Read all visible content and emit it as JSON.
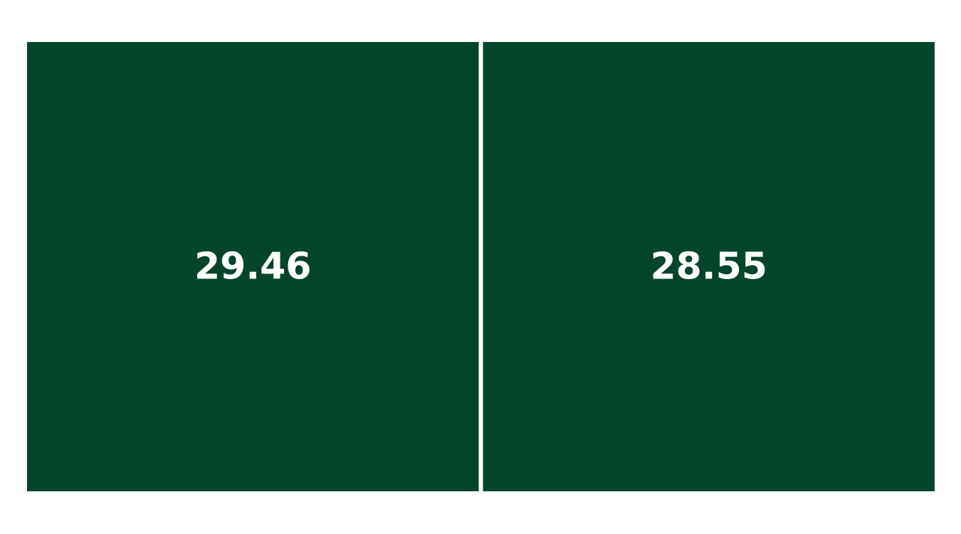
{
  "chart_data": {
    "type": "heatmap",
    "title": "",
    "xlabel": "",
    "ylabel": "",
    "rows": 1,
    "columns": 2,
    "values": [
      29.46,
      28.55
    ],
    "labels": [
      "29.46",
      "28.55"
    ],
    "grid": false,
    "legend": "none"
  },
  "colors": {
    "cell": "#03452a",
    "label": "#ffffff",
    "background": "#ffffff"
  }
}
